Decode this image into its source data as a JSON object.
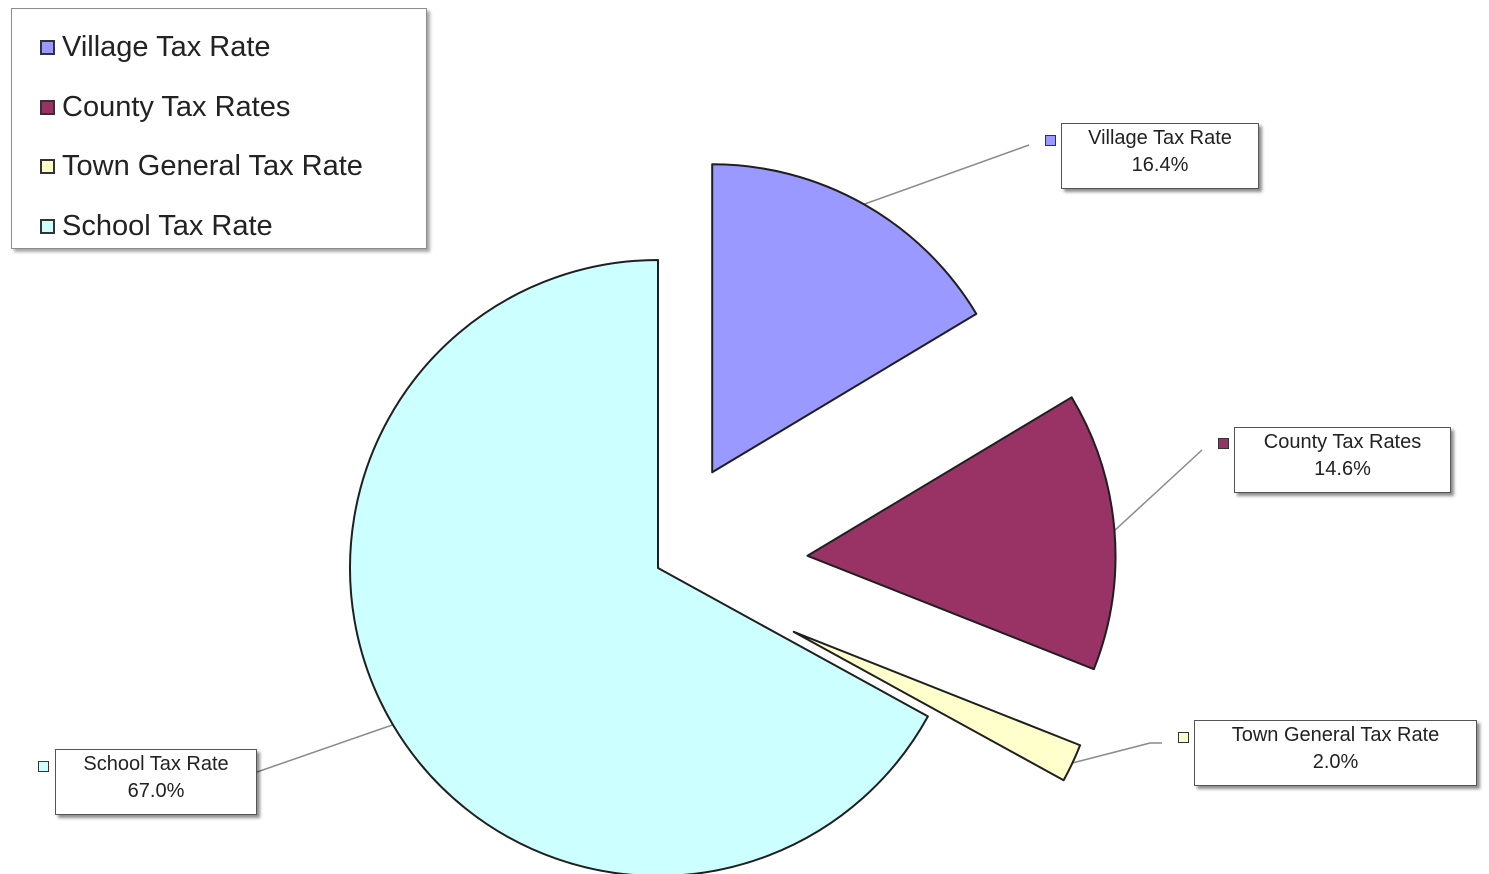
{
  "chart_data": {
    "type": "pie",
    "exploded": true,
    "legend_position": "top-left",
    "slices": [
      {
        "label": "Village Tax Rate",
        "value": 16.4,
        "display": "16.4%",
        "color": "#9999ff"
      },
      {
        "label": "County Tax Rates",
        "value": 14.6,
        "display": "14.6%",
        "color": "#993366"
      },
      {
        "label": "Town General Tax Rate",
        "value": 2.0,
        "display": "2.0%",
        "color": "#ffffcc"
      },
      {
        "label": "School Tax Rate",
        "value": 67.0,
        "display": "67.0%",
        "color": "#ccffff"
      }
    ]
  }
}
